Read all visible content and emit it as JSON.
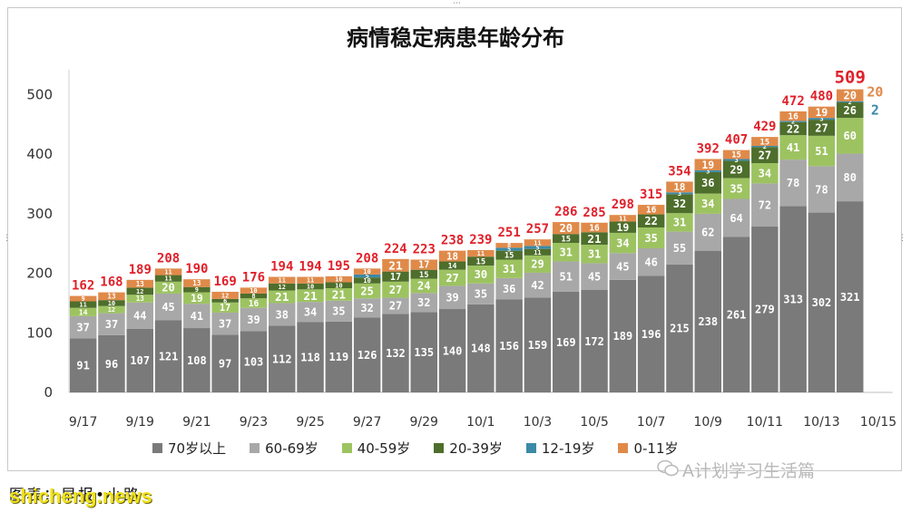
{
  "chart_data": {
    "type": "bar",
    "stacked": true,
    "title": "病情稳定病患年龄分布",
    "categories": [
      "9/17",
      "9/18",
      "9/19",
      "9/20",
      "9/21",
      "9/22",
      "9/23",
      "9/24",
      "9/25",
      "9/26",
      "9/27",
      "9/28",
      "9/29",
      "9/30",
      "10/1",
      "10/2",
      "10/3",
      "10/4",
      "10/5",
      "10/6",
      "10/7",
      "10/8",
      "10/9",
      "10/10",
      "10/11",
      "10/12",
      "10/13",
      "10/14",
      "10/15"
    ],
    "x_tick_labels": [
      "9/17",
      "9/19",
      "9/21",
      "9/23",
      "9/25",
      "9/27",
      "9/29",
      "10/1",
      "10/3",
      "10/5",
      "10/7",
      "10/9",
      "10/11",
      "10/13",
      "10/15"
    ],
    "yticks": [
      0,
      100,
      200,
      300,
      400,
      500
    ],
    "ylim": [
      0,
      560
    ],
    "grid": false,
    "legend_position": "bottom",
    "series": [
      {
        "name": "70岁以上",
        "color": "#7a7a7a",
        "label_color": "#ffffff",
        "values": [
          91,
          96,
          107,
          121,
          108,
          97,
          103,
          112,
          118,
          119,
          126,
          132,
          135,
          140,
          148,
          156,
          159,
          169,
          172,
          189,
          196,
          215,
          238,
          261,
          279,
          313,
          302,
          321,
          null
        ]
      },
      {
        "name": "60-69岁",
        "color": "#a8a8a8",
        "label_color": "#ffffff",
        "values": [
          37,
          37,
          44,
          45,
          41,
          37,
          39,
          38,
          34,
          35,
          32,
          27,
          32,
          39,
          35,
          36,
          42,
          51,
          45,
          45,
          46,
          55,
          62,
          64,
          72,
          78,
          78,
          80,
          null
        ]
      },
      {
        "name": "40-59岁",
        "color": "#9dc361",
        "label_color": "#ffffff",
        "values": [
          14,
          12,
          13,
          20,
          19,
          17,
          16,
          21,
          21,
          21,
          25,
          27,
          24,
          27,
          30,
          31,
          29,
          31,
          31,
          34,
          35,
          31,
          34,
          35,
          34,
          41,
          51,
          60,
          null
        ]
      },
      {
        "name": "20-39岁",
        "color": "#4e6e2c",
        "label_color": "#ffffff",
        "values": [
          11,
          10,
          12,
          11,
          9,
          6,
          8,
          12,
          10,
          10,
          10,
          17,
          15,
          14,
          15,
          15,
          11,
          15,
          21,
          19,
          22,
          32,
          36,
          29,
          27,
          22,
          27,
          26,
          null
        ]
      },
      {
        "name": "12-19岁",
        "color": "#3c8aa6",
        "label_color": "#ffffff",
        "values": [
          0,
          0,
          0,
          0,
          0,
          0,
          0,
          0,
          0,
          0,
          5,
          0,
          0,
          0,
          0,
          5,
          5,
          0,
          0,
          0,
          0,
          3,
          3,
          3,
          2,
          2,
          3,
          2,
          null
        ]
      },
      {
        "name": "0-11岁",
        "color": "#e08a4a",
        "label_color": "#ffffff",
        "values": [
          9,
          13,
          13,
          11,
          13,
          12,
          10,
          11,
          11,
          10,
          10,
          21,
          17,
          18,
          11,
          8,
          11,
          20,
          16,
          11,
          16,
          18,
          19,
          15,
          15,
          16,
          19,
          20,
          null
        ]
      }
    ],
    "totals": [
      162,
      168,
      189,
      208,
      190,
      169,
      176,
      194,
      194,
      195,
      208,
      224,
      223,
      238,
      239,
      251,
      257,
      286,
      285,
      298,
      315,
      354,
      392,
      407,
      429,
      472,
      480,
      509,
      null
    ],
    "side_labels": [
      {
        "series": "0-11岁",
        "text": "20",
        "color": "#e08a4a"
      },
      {
        "series": "12-19岁",
        "text": "2",
        "color": "#3c8aa6"
      }
    ]
  },
  "legend": [
    {
      "label": "70岁以上",
      "color": "#7a7a7a"
    },
    {
      "label": "60-69岁",
      "color": "#a8a8a8"
    },
    {
      "label": "40-59岁",
      "color": "#9dc361"
    },
    {
      "label": "20-39岁",
      "color": "#4e6e2c"
    },
    {
      "label": "12-19岁",
      "color": "#3c8aa6"
    },
    {
      "label": "0-11岁",
      "color": "#e08a4a"
    }
  ],
  "watermark": "A计划学习生活篇",
  "caption": "图表：早报•小路",
  "site_mark": "shicheng.news",
  "colors": {
    "total_label": "#e0202a",
    "axis": "#333333"
  }
}
